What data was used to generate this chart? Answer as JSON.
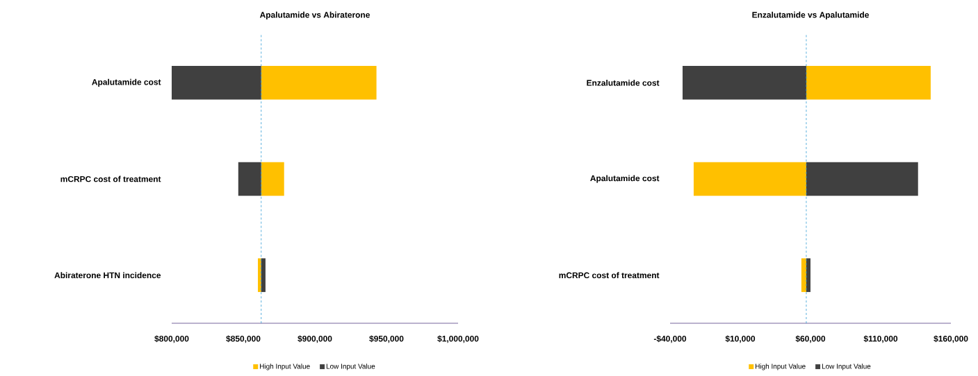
{
  "chart_data": [
    {
      "type": "bar",
      "orientation": "horizontal",
      "title": "Apalutamide vs Abiraterone",
      "categories": [
        "Apalutamide cost",
        "mCRPC cost of treatment",
        "Abiraterone HTN incidence"
      ],
      "series": [
        {
          "name": "High Input Value",
          "color": "#ffc000",
          "base": [
            862500,
            862500,
            862500
          ],
          "values": [
            80500,
            16000,
            -2300
          ]
        },
        {
          "name": "Low Input Value",
          "color": "#404040",
          "base": [
            862500,
            862500,
            862500
          ],
          "values": [
            -62500,
            -16000,
            3000
          ]
        }
      ],
      "xlim": [
        800000,
        1000000
      ],
      "xticks": [
        {
          "value": 800000,
          "label": "$800,000"
        },
        {
          "value": 850000,
          "label": "$850,000"
        },
        {
          "value": 900000,
          "label": "$900,000"
        },
        {
          "value": 950000,
          "label": "$950,000"
        },
        {
          "value": 1000000,
          "label": "$1,000,000"
        }
      ],
      "ref_lines": [
        {
          "axis": "x",
          "value": 862500,
          "color": "#2e9bd6",
          "line_style": "dashed"
        }
      ],
      "legend": "bottom"
    },
    {
      "type": "bar",
      "orientation": "horizontal",
      "title": "Enzalutamide vs Apalutamide",
      "categories": [
        "Enzalutamide cost",
        "Apalutamide cost",
        "mCRPC cost of treatment"
      ],
      "series": [
        {
          "name": "High Input Value",
          "color": "#ffc000",
          "base": [
            57000,
            57000,
            57000
          ],
          "values": [
            88600,
            -80200,
            -3500
          ]
        },
        {
          "name": "Low Input Value",
          "color": "#404040",
          "base": [
            57000,
            57000,
            57000
          ],
          "values": [
            -88100,
            79600,
            3000
          ]
        }
      ],
      "xlim": [
        -40000,
        160000
      ],
      "xticks": [
        {
          "value": -40000,
          "label": "-$40,000"
        },
        {
          "value": 10000,
          "label": "$10,000"
        },
        {
          "value": 60000,
          "label": "$60,000"
        },
        {
          "value": 110000,
          "label": "$110,000"
        },
        {
          "value": 160000,
          "label": "$160,000"
        }
      ],
      "ref_lines": [
        {
          "axis": "x",
          "value": 57000,
          "color": "#2e9bd6",
          "line_style": "dashed"
        }
      ],
      "legend": "bottom"
    }
  ]
}
